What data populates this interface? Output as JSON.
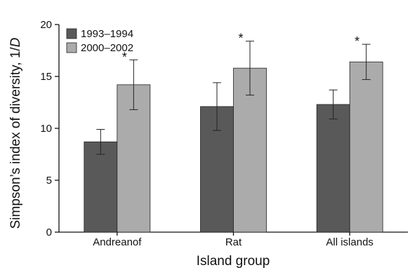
{
  "chart_data": {
    "type": "bar",
    "categories": [
      "Andreanof",
      "Rat",
      "All islands"
    ],
    "series": [
      {
        "name": "1993–1994",
        "color": "#595959",
        "values": [
          8.7,
          12.1,
          12.3
        ],
        "error": [
          1.2,
          2.3,
          1.4
        ]
      },
      {
        "name": "2000–2002",
        "color": "#ababab",
        "values": [
          14.2,
          15.8,
          16.4
        ],
        "error": [
          2.4,
          2.6,
          1.7
        ]
      }
    ],
    "annotations": [
      "*",
      "*",
      "*"
    ],
    "xlabel": "Island group",
    "ylabel_main": "Simpson’s index of diversity, 1/",
    "ylabel_italic": "D",
    "ylim": [
      0,
      20
    ],
    "yticks": [
      "0",
      "5",
      "10",
      "15",
      "20"
    ],
    "legend_position": "top-left",
    "grid": false
  }
}
